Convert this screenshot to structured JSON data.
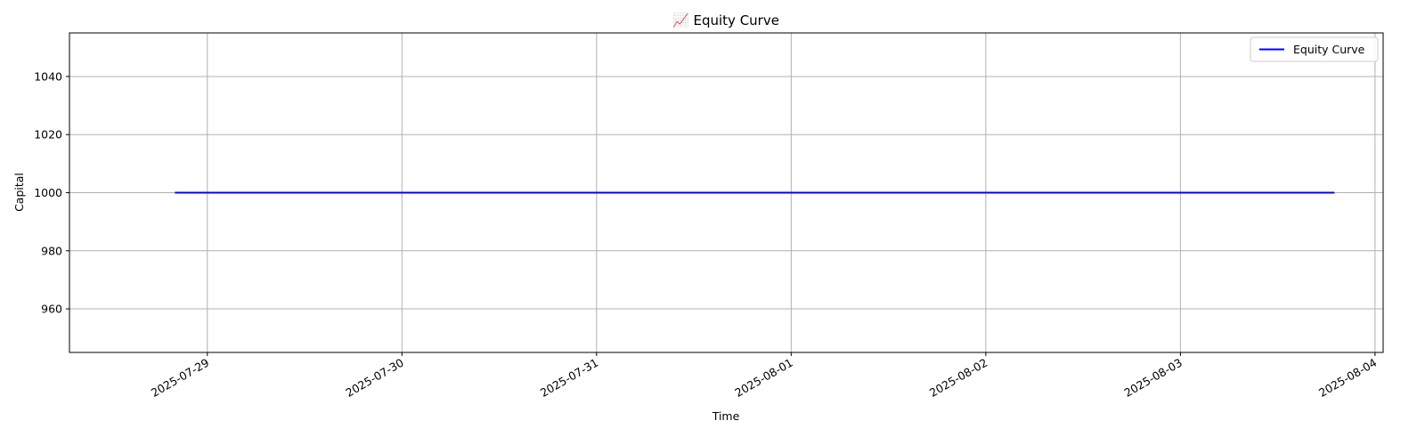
{
  "chart_data": {
    "type": "line",
    "title": "📈 Equity Curve",
    "xlabel": "Time",
    "ylabel": "Capital",
    "x_ticks": [
      "2025-07-29",
      "2025-07-30",
      "2025-07-31",
      "2025-08-01",
      "2025-08-02",
      "2025-08-03",
      "2025-08-04"
    ],
    "y_ticks": [
      960,
      980,
      1000,
      1020,
      1040
    ],
    "xlim": [
      "2025-07-28T07:00",
      "2025-08-04T01:00"
    ],
    "ylim": [
      945,
      1055
    ],
    "grid": true,
    "legend_position": "top-right",
    "series": [
      {
        "name": "Equity Curve",
        "color": "#0000ff",
        "x": [
          "2025-07-28T20:00",
          "2025-08-03T19:00"
        ],
        "y": [
          1000,
          1000
        ]
      }
    ]
  }
}
